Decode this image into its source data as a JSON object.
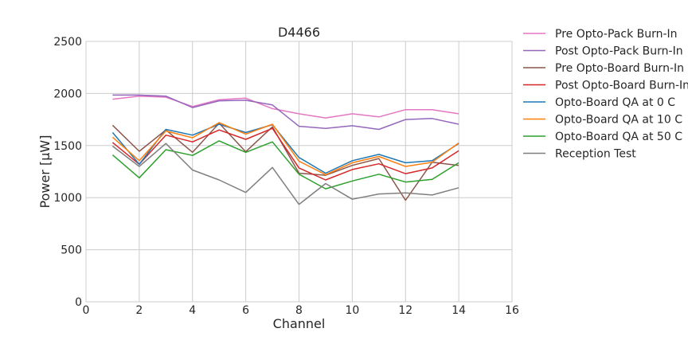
{
  "chart_data": {
    "type": "line",
    "title": "D4466",
    "xlabel": "Channel",
    "ylabel": "Power [μW]",
    "xlim": [
      0,
      16
    ],
    "ylim": [
      0,
      2500
    ],
    "xticks": [
      0,
      2,
      4,
      6,
      8,
      10,
      12,
      14,
      16
    ],
    "yticks": [
      0,
      500,
      1000,
      1500,
      2000,
      2500
    ],
    "grid": true,
    "legend_position": "outside-right",
    "x": [
      1,
      2,
      3,
      4,
      5,
      6,
      7,
      8,
      9,
      10,
      11,
      12,
      13,
      14
    ],
    "series": [
      {
        "name": "Pre Opto-Pack Burn-In",
        "color": "#e377c2",
        "values": [
          1945,
          1975,
          1965,
          1875,
          1940,
          1955,
          1855,
          1805,
          1765,
          1805,
          1775,
          1845,
          1845,
          1805
        ]
      },
      {
        "name": "Post Opto-Pack Burn-In",
        "color": "#9467bd",
        "values": [
          1985,
          1985,
          1975,
          1865,
          1930,
          1935,
          1890,
          1685,
          1665,
          1690,
          1655,
          1750,
          1760,
          1705
        ]
      },
      {
        "name": "Pre Opto-Board Burn-In",
        "color": "#8c564b",
        "values": [
          1695,
          1445,
          1650,
          1435,
          1715,
          1440,
          1680,
          1235,
          1215,
          1310,
          1375,
          975,
          1340,
          1310
        ]
      },
      {
        "name": "Post Opto-Board Burn-In",
        "color": "#d62728",
        "values": [
          1530,
          1320,
          1600,
          1535,
          1650,
          1560,
          1665,
          1285,
          1170,
          1270,
          1325,
          1230,
          1285,
          1450
        ]
      },
      {
        "name": "Opto-Board QA at 0 C",
        "color": "#1f77b4",
        "values": [
          1625,
          1320,
          1655,
          1600,
          1705,
          1625,
          1700,
          1385,
          1235,
          1355,
          1415,
          1335,
          1355,
          1520
        ]
      },
      {
        "name": "Opto-Board QA at 10 C",
        "color": "#ff7f0e",
        "values": [
          1580,
          1355,
          1640,
          1575,
          1720,
          1610,
          1705,
          1350,
          1220,
          1335,
          1395,
          1300,
          1340,
          1525
        ]
      },
      {
        "name": "Opto-Board QA at 50 C",
        "color": "#2ca02c",
        "values": [
          1410,
          1190,
          1460,
          1405,
          1545,
          1435,
          1535,
          1225,
          1085,
          1160,
          1225,
          1150,
          1175,
          1335
        ]
      },
      {
        "name": "Reception Test",
        "color": "#7f7f7f",
        "values": [
          1495,
          1300,
          1520,
          1265,
          1170,
          1050,
          1290,
          935,
          1135,
          985,
          1035,
          1045,
          1025,
          1095
        ]
      }
    ]
  }
}
